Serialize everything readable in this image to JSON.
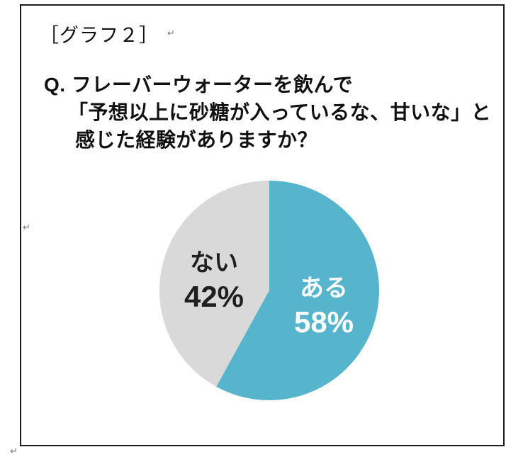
{
  "header": {
    "graph_label": "［グラフ２］"
  },
  "question": {
    "lines": [
      "Q. フレーバーウォーターを飲んで",
      "「予想以上に砂糖が入っているな、甘いな」と",
      "感じた経験がありますか？"
    ]
  },
  "chart_data": {
    "type": "pie",
    "title": "Q. フレーバーウォーターを飲んで「予想以上に砂糖が入っているな、甘いな」と感じた経験がありますか？",
    "slices": [
      {
        "label": "ある",
        "value": 58,
        "display": "58%",
        "color": "#56b4cc",
        "label_color": "#ffffff"
      },
      {
        "label": "ない",
        "value": 42,
        "display": "42%",
        "color": "#d9d9d9",
        "label_color": "#1f1f1f"
      }
    ],
    "total": 100,
    "start_angle_deg": 0,
    "direction": "clockwise",
    "legend_position": "labels-inside"
  },
  "marks": {
    "return_mark": "↵"
  }
}
